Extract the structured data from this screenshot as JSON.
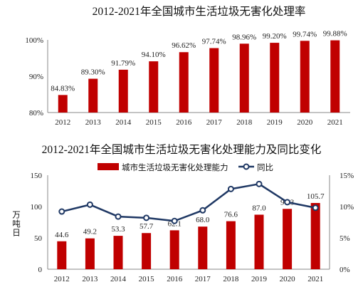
{
  "chart_data": [
    {
      "type": "bar",
      "title": "2012-2021年全国城市生活垃圾无害化处理率",
      "categories": [
        "2012",
        "2013",
        "2014",
        "2015",
        "2016",
        "2017",
        "2018",
        "2019",
        "2020",
        "2021"
      ],
      "values": [
        84.83,
        89.3,
        91.79,
        94.1,
        96.62,
        97.74,
        98.96,
        99.2,
        99.74,
        99.88
      ],
      "data_labels": [
        "84.83%",
        "89.30%",
        "91.79%",
        "94.10%",
        "96.62%",
        "97.74%",
        "98.96%",
        "99.20%",
        "99.74%",
        "99.88%"
      ],
      "ylim": [
        80,
        100
      ],
      "yticks": [
        "80%",
        "90%",
        "100%"
      ],
      "colors": {
        "bar": "#c00000"
      }
    },
    {
      "type": "bar+line",
      "title": "2012-2021年全国城市生活垃圾无害化处理能力及同比变化",
      "categories": [
        "2012",
        "2013",
        "2014",
        "2015",
        "2016",
        "2017",
        "2018",
        "2019",
        "2020",
        "2021"
      ],
      "ylabel": "万吨日",
      "series": [
        {
          "name": "城市生活垃圾无害化处理能力",
          "kind": "bar",
          "axis": "left",
          "values": [
            44.6,
            49.2,
            53.3,
            57.7,
            62.1,
            68.0,
            76.6,
            87.0,
            96.3,
            105.7
          ],
          "data_labels": [
            "44.6",
            "49.2",
            "53.3",
            "57.7",
            "62.1",
            "68.0",
            "76.6",
            "87.0",
            "96.3",
            "105.7"
          ]
        },
        {
          "name": "同比",
          "kind": "line",
          "axis": "right",
          "values": [
            9.2,
            10.3,
            8.4,
            8.2,
            7.7,
            9.4,
            12.8,
            13.6,
            10.7,
            9.8
          ]
        }
      ],
      "ylim_left": [
        0,
        150
      ],
      "yticks_left": [
        "0",
        "50",
        "100",
        "150"
      ],
      "ylim_right": [
        0,
        15
      ],
      "yticks_right": [
        "0%",
        "5%",
        "10%",
        "15%"
      ],
      "legend_position": "top",
      "colors": {
        "bar": "#c00000",
        "line": "#1f3864"
      }
    }
  ]
}
